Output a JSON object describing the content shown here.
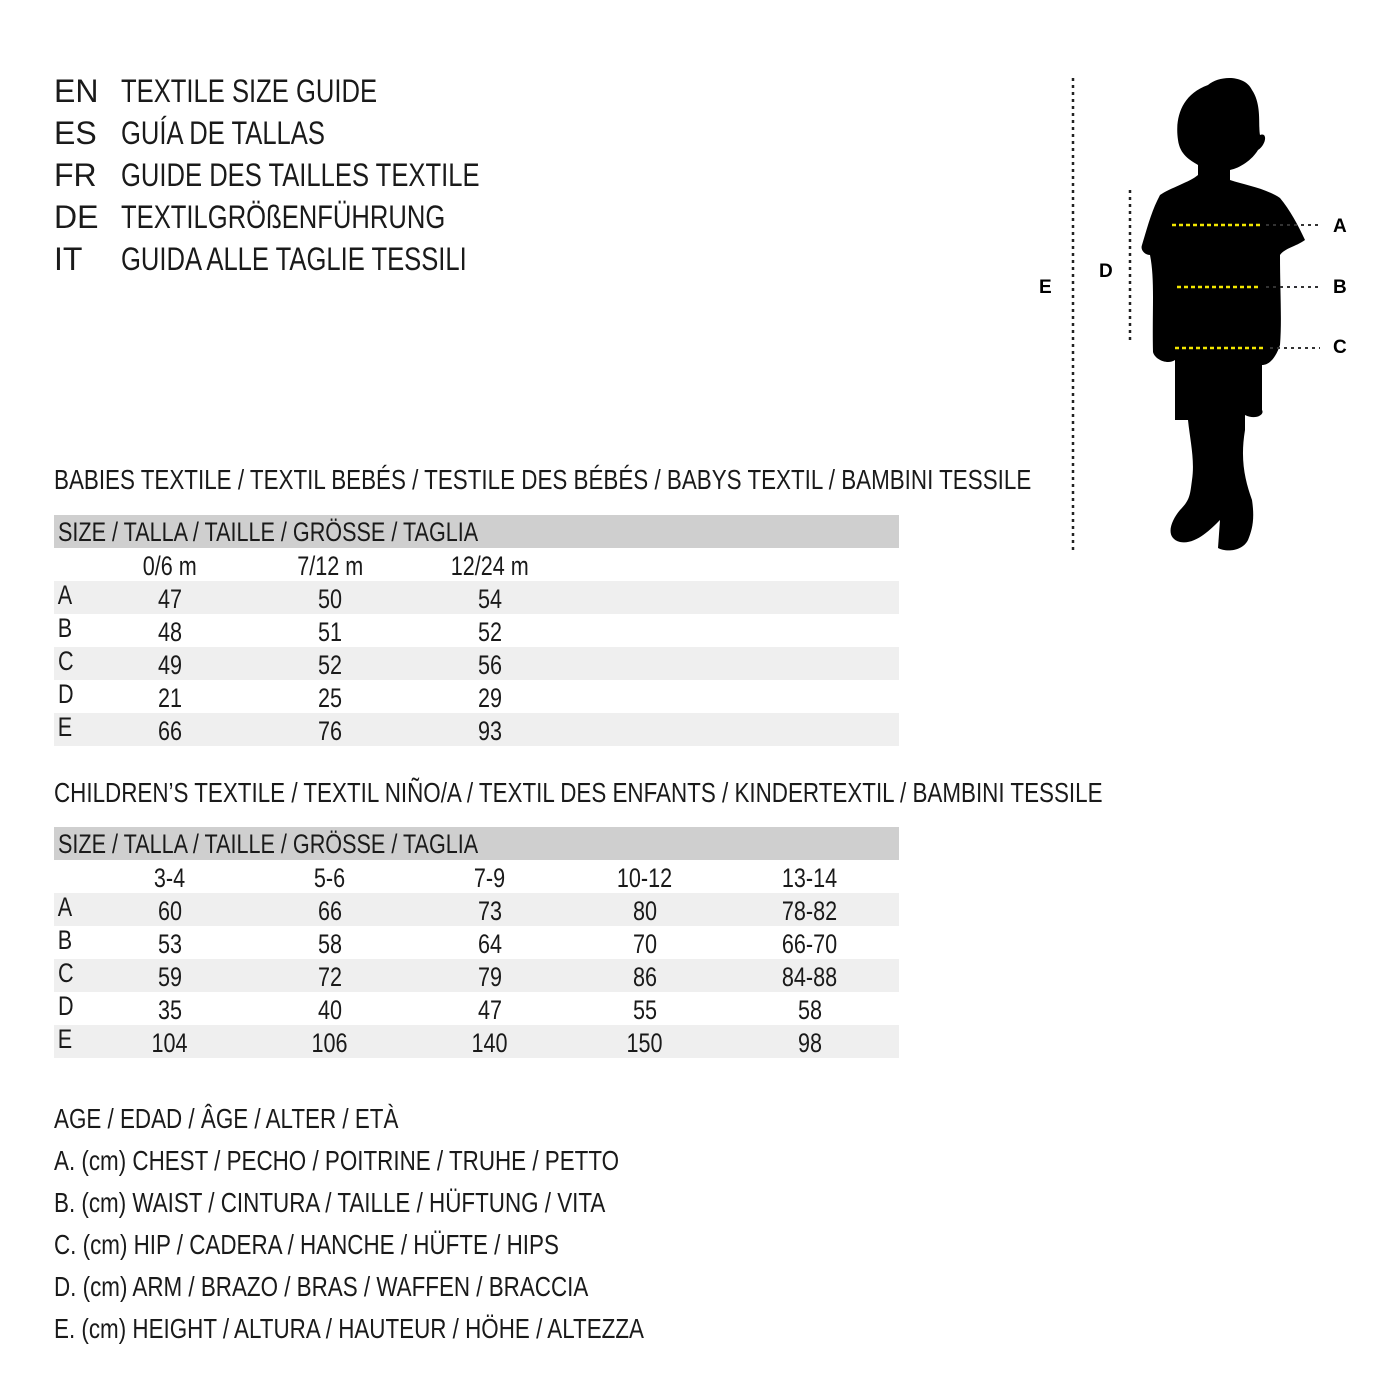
{
  "titles": [
    {
      "lang": "EN",
      "text": "TEXTILE SIZE GUIDE"
    },
    {
      "lang": "ES",
      "text": "GUÍA DE TALLAS"
    },
    {
      "lang": "FR",
      "text": "GUIDE DES TAILLES TEXTILE"
    },
    {
      "lang": "DE",
      "text": "TEXTILGRÖßENFÜHRUNG"
    },
    {
      "lang": "IT",
      "text": "GUIDA ALLE TAGLIE TESSILI"
    }
  ],
  "diagram": {
    "labels": {
      "a": "A",
      "b": "B",
      "c": "C",
      "d": "D",
      "e": "E"
    },
    "measure_line_color": "#f2e600"
  },
  "babies": {
    "heading": "BABIES TEXTILE / TEXTIL BEBÉS / TESTILE DES BÉBÉS / BABYS TEXTIL / BAMBINI TESSILE",
    "size_header": "SIZE / TALLA / TAILLE / GRÖSSE / TAGLIA",
    "columns": [
      "0/6 m",
      "7/12 m",
      "12/24 m"
    ],
    "rows": [
      {
        "label": "A",
        "values": [
          "47",
          "50",
          "54"
        ]
      },
      {
        "label": "B",
        "values": [
          "48",
          "51",
          "52"
        ]
      },
      {
        "label": "C",
        "values": [
          "49",
          "52",
          "56"
        ]
      },
      {
        "label": "D",
        "values": [
          "21",
          "25",
          "29"
        ]
      },
      {
        "label": "E",
        "values": [
          "66",
          "76",
          "93"
        ]
      }
    ]
  },
  "children": {
    "heading": "CHILDREN’S TEXTILE / TEXTIL NIÑO/A / TEXTIL DES ENFANTS / KINDERTEXTIL / BAMBINI TESSILE",
    "size_header": "SIZE / TALLA / TAILLE / GRÖSSE / TAGLIA",
    "columns": [
      "3-4",
      "5-6",
      "7-9",
      "10-12",
      "13-14"
    ],
    "rows": [
      {
        "label": "A",
        "values": [
          "60",
          "66",
          "73",
          "80",
          "78-82"
        ]
      },
      {
        "label": "B",
        "values": [
          "53",
          "58",
          "64",
          "70",
          "66-70"
        ]
      },
      {
        "label": "C",
        "values": [
          "59",
          "72",
          "79",
          "86",
          "84-88"
        ]
      },
      {
        "label": "D",
        "values": [
          "35",
          "40",
          "47",
          "55",
          "58"
        ]
      },
      {
        "label": "E",
        "values": [
          "104",
          "106",
          "140",
          "150",
          "98"
        ]
      }
    ]
  },
  "legend": [
    "AGE / EDAD / ÂGE / ALTER / ETÀ",
    "A. (cm) CHEST / PECHO / POITRINE / TRUHE / PETTO",
    "B. (cm) WAIST / CINTURA / TAILLE / HÜFTUNG / VITA",
    "C. (cm) HIP / CADERA / HANCHE / HÜFTE / HIPS",
    "D. (cm) ARM / BRAZO / BRAS / WAFFEN / BRACCIA",
    "E. (cm) HEIGHT / ALTURA / HAUTEUR / HÖHE / ALTEZZA"
  ]
}
